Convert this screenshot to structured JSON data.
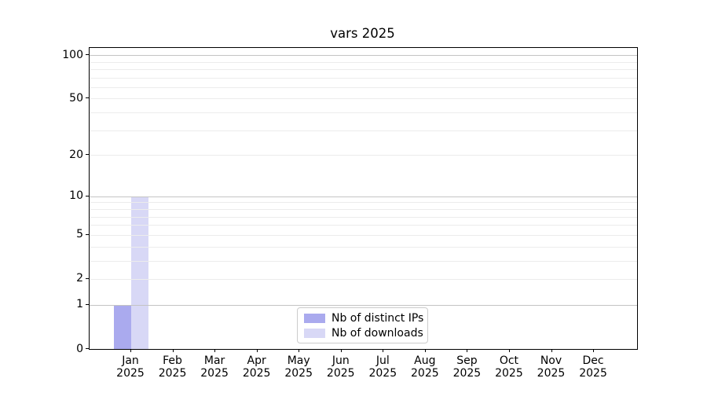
{
  "title": "vars 2025",
  "chart_data": {
    "type": "bar",
    "title": "vars 2025",
    "scale": "log1p",
    "categories": [
      "Jan",
      "Feb",
      "Mar",
      "Apr",
      "May",
      "Jun",
      "Jul",
      "Aug",
      "Sep",
      "Oct",
      "Nov",
      "Dec"
    ],
    "year": "2025",
    "series": [
      {
        "name": "Nb of distinct IPs",
        "color": "#aaaaee",
        "values": [
          1,
          0,
          0,
          0,
          0,
          0,
          0,
          0,
          0,
          0,
          0,
          0
        ]
      },
      {
        "name": "Nb of downloads",
        "color": "#d8d8f6",
        "values": [
          10,
          0,
          0,
          0,
          0,
          0,
          0,
          0,
          0,
          0,
          0,
          0
        ]
      }
    ],
    "xlabel": "",
    "ylabel": "",
    "ylim": [
      0,
      112
    ],
    "y_tick_labels": [
      0,
      1,
      2,
      5,
      10,
      20,
      50,
      100
    ],
    "gridlines_emphasized": [
      1,
      10,
      100
    ],
    "gridlines_light": [
      2,
      3,
      4,
      5,
      6,
      7,
      8,
      9,
      20,
      30,
      40,
      50,
      60,
      70,
      80,
      90
    ],
    "grid": "horizontal",
    "legend_position": "lower center",
    "colors": {
      "grid_major": "#c4c4c4",
      "grid_minor": "#ececec",
      "spine": "#000000",
      "background": "#ffffff",
      "text": "#000000"
    }
  }
}
